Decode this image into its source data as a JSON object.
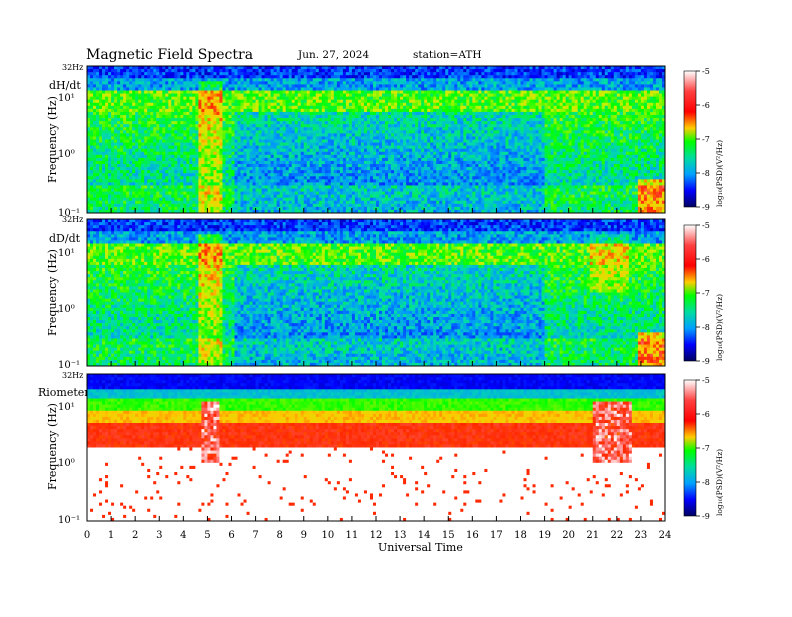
{
  "header": {
    "title": "Magnetic  Field  Spectra",
    "date": "Jun. 27, 2024",
    "station": "station=ATH"
  },
  "chart_data": [
    {
      "type": "heatmap",
      "panel_label": "dH/dt",
      "top_label": "32Hz",
      "ylabel": "Frequency  (Hz)",
      "y_ticks": [
        "10¹",
        "10⁰",
        "10⁻¹"
      ],
      "x_range": [
        0,
        24
      ],
      "yscale": "log",
      "colorbar": {
        "ticks": [
          "-5",
          "-6",
          "-7",
          "-8",
          "-9"
        ],
        "label": "log₁₀(PSD)(V²/Hz)"
      }
    },
    {
      "type": "heatmap",
      "panel_label": "dD/dt",
      "top_label": "32Hz",
      "ylabel": "Frequency  (Hz)",
      "y_ticks": [
        "10¹",
        "10⁰",
        "10⁻¹"
      ],
      "x_range": [
        0,
        24
      ],
      "yscale": "log",
      "colorbar": {
        "ticks": [
          "-5",
          "-6",
          "-7",
          "-8",
          "-9"
        ],
        "label": "log₁₀(PSD)(V²/Hz)"
      }
    },
    {
      "type": "heatmap",
      "panel_label": "Riometer",
      "top_label": "32Hz",
      "ylabel": "Frequency  (Hz)",
      "y_ticks": [
        "10¹",
        "10⁰",
        "10⁻¹"
      ],
      "x_range": [
        0,
        24
      ],
      "yscale": "log",
      "colorbar": {
        "ticks": [
          "-5",
          "-6",
          "-7",
          "-8",
          "-9"
        ],
        "label": "log₁₀(PSD)(V²/Hz)"
      }
    }
  ],
  "x_axis": {
    "label": "Universal Time",
    "ticks": [
      "0",
      "1",
      "2",
      "3",
      "4",
      "5",
      "6",
      "7",
      "8",
      "9",
      "10",
      "11",
      "12",
      "13",
      "14",
      "15",
      "16",
      "17",
      "18",
      "19",
      "20",
      "21",
      "22",
      "23",
      "24"
    ]
  },
  "colors": {
    "scale": [
      "#ff0000",
      "#ffb000",
      "#00ff00",
      "#00c8ff",
      "#0000ff",
      "#000080"
    ]
  }
}
